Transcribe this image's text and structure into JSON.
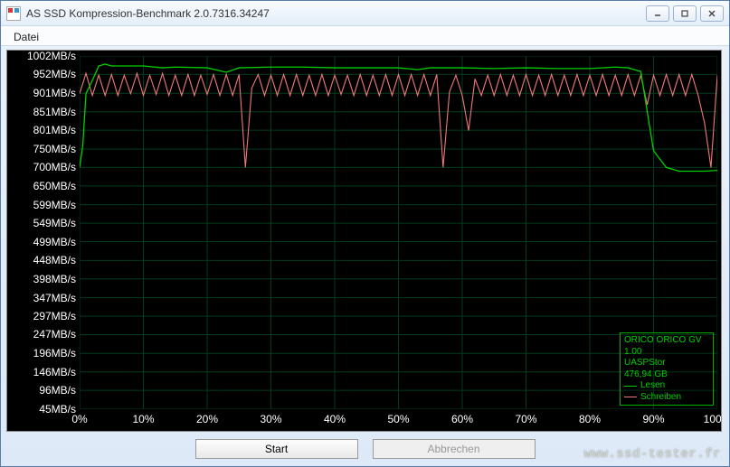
{
  "window": {
    "title": "AS SSD Kompression-Benchmark 2.0.7316.34247"
  },
  "menu": {
    "file": "Datei"
  },
  "chart": {
    "type": "line",
    "xlim": [
      0,
      100
    ],
    "xtick_step": 10,
    "xtick_suffix": "%",
    "ymin": 45,
    "ymax": 1002,
    "y_ticks": [
      1002,
      952,
      901,
      851,
      801,
      750,
      700,
      650,
      599,
      549,
      499,
      448,
      398,
      347,
      297,
      247,
      196,
      146,
      96,
      45
    ],
    "y_suffix": "MB/s",
    "background_color": "#000000",
    "grid_color": "#003c1e",
    "axis_label_color": "#ffffff",
    "label_fontsize": 12,
    "read": {
      "label": "Lesen",
      "color": "#00d000",
      "width": 1.3,
      "x": [
        0,
        0.5,
        1,
        2,
        3,
        4,
        5,
        10,
        13,
        15,
        20,
        23,
        25,
        30,
        35,
        40,
        45,
        50,
        53,
        55,
        60,
        65,
        70,
        75,
        80,
        84,
        86,
        88,
        90,
        92,
        94,
        96,
        98,
        100
      ],
      "y": [
        700,
        760,
        900,
        936,
        975,
        980,
        975,
        975,
        970,
        972,
        970,
        958,
        970,
        972,
        972,
        970,
        970,
        970,
        965,
        970,
        970,
        968,
        970,
        968,
        968,
        972,
        970,
        960,
        745,
        700,
        690,
        690,
        690,
        692
      ]
    },
    "write": {
      "label": "Schreiben",
      "color": "#f07878",
      "width": 1.1,
      "x": [
        0,
        1,
        2,
        3,
        4,
        5,
        6,
        7,
        8,
        9,
        10,
        11,
        12,
        13,
        14,
        15,
        16,
        17,
        18,
        19,
        20,
        21,
        22,
        23,
        24,
        25,
        26,
        27,
        28,
        29,
        30,
        31,
        32,
        33,
        34,
        35,
        36,
        37,
        38,
        39,
        40,
        41,
        42,
        43,
        44,
        45,
        46,
        47,
        48,
        49,
        50,
        51,
        52,
        53,
        54,
        55,
        56,
        57,
        58,
        59,
        60,
        61,
        62,
        63,
        64,
        65,
        66,
        67,
        68,
        69,
        70,
        71,
        72,
        73,
        74,
        75,
        76,
        77,
        78,
        79,
        80,
        81,
        82,
        83,
        84,
        85,
        86,
        87,
        88,
        89,
        90,
        91,
        92,
        93,
        94,
        95,
        96,
        97,
        98,
        99,
        100
      ],
      "y": [
        900,
        955,
        895,
        950,
        895,
        952,
        895,
        950,
        900,
        955,
        895,
        950,
        898,
        955,
        895,
        950,
        895,
        952,
        895,
        950,
        898,
        952,
        895,
        952,
        895,
        952,
        700,
        915,
        952,
        895,
        950,
        895,
        952,
        895,
        952,
        895,
        950,
        895,
        952,
        895,
        950,
        898,
        950,
        895,
        952,
        895,
        950,
        895,
        952,
        895,
        952,
        895,
        952,
        895,
        952,
        895,
        952,
        700,
        905,
        950,
        895,
        800,
        940,
        895,
        950,
        895,
        952,
        895,
        950,
        895,
        952,
        895,
        950,
        895,
        952,
        895,
        950,
        895,
        952,
        895,
        950,
        895,
        952,
        895,
        950,
        895,
        952,
        895,
        950,
        870,
        950,
        895,
        952,
        895,
        952,
        895,
        952,
        895,
        820,
        700,
        950
      ]
    },
    "legend": {
      "border_color": "#00b000",
      "text_color": "#00d000",
      "device": "ORICO ORICO GV",
      "fw": "1.00",
      "driver": "UASPStor",
      "capacity": "476,94 GB"
    }
  },
  "buttons": {
    "start": "Start",
    "abort": "Abbrechen"
  },
  "watermark": "www.ssd-tester.fr"
}
